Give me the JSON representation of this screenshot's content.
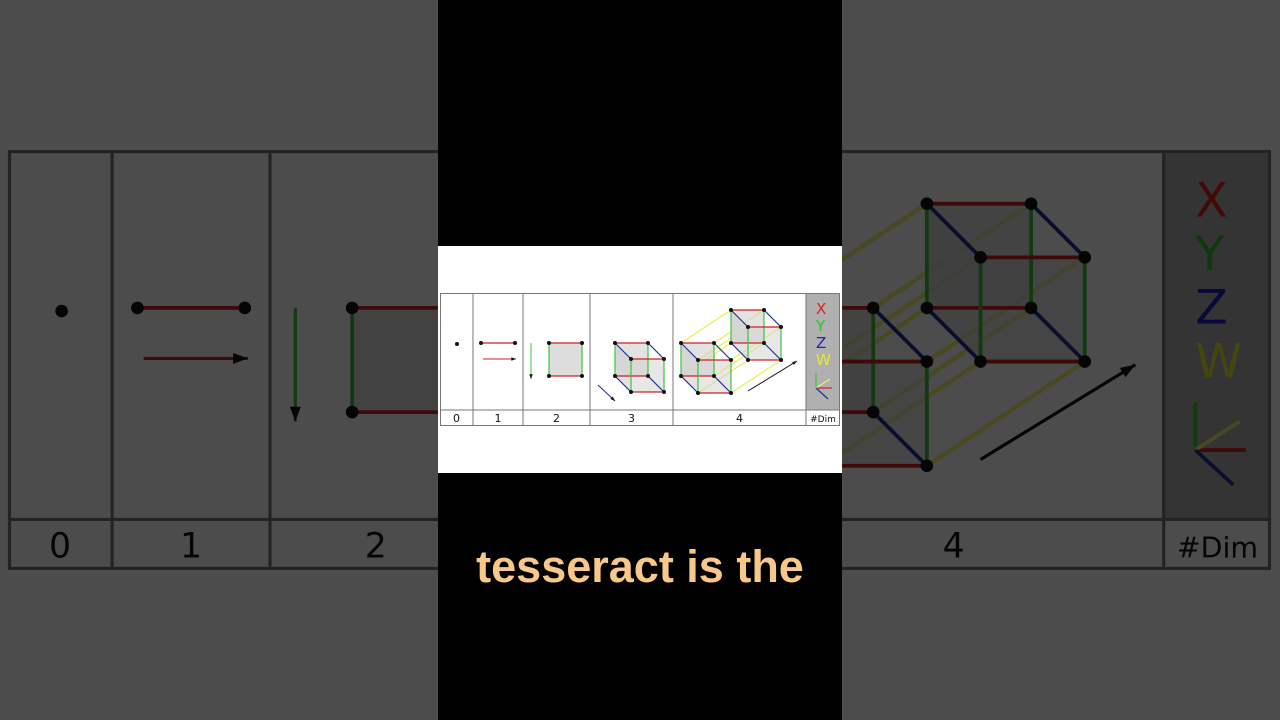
{
  "video": {
    "caption": "tesseract is the"
  },
  "diagram": {
    "column_labels": [
      "0",
      "1",
      "2",
      "3",
      "4",
      "#Dim"
    ],
    "axis_legend": [
      {
        "letter": "X",
        "color": "#e02020"
      },
      {
        "letter": "Y",
        "color": "#30c030"
      },
      {
        "letter": "Z",
        "color": "#2020c0"
      },
      {
        "letter": "W",
        "color": "#e8e830"
      }
    ],
    "colors": {
      "x_edge": "#d02020",
      "y_edge": "#40c040",
      "z_edge": "#2030a0",
      "w_edge": "#f0f070",
      "face_fill": "#cfcfcf",
      "legend_bg": "#b0b0b0",
      "caption": "#f7c889"
    }
  }
}
